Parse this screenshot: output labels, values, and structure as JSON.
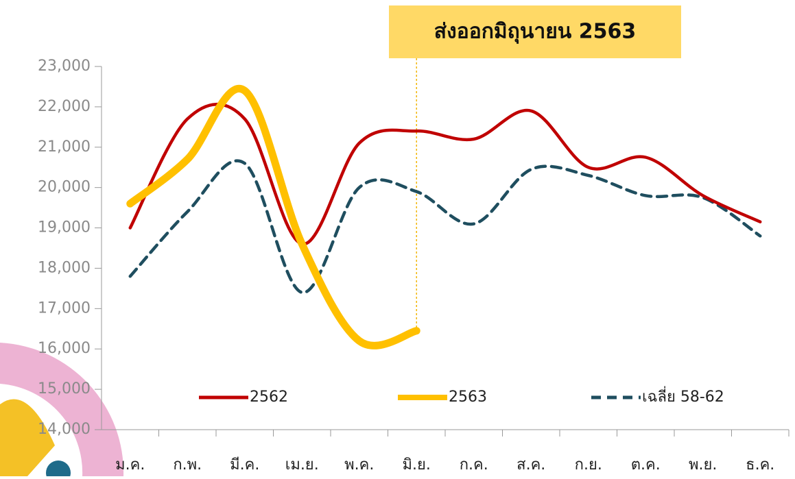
{
  "chart_data": {
    "type": "line",
    "annotation": "ส่งออกมิถุนายน 2563",
    "categories": [
      "ม.ค.",
      "ก.พ.",
      "มี.ค.",
      "เม.ย.",
      "พ.ค.",
      "มิ.ย.",
      "ก.ค.",
      "ส.ค.",
      "ก.ย.",
      "ต.ค.",
      "พ.ย.",
      "ธ.ค."
    ],
    "series": [
      {
        "name": "2562",
        "color": "#c00000",
        "dash": false,
        "values": [
          19000,
          21700,
          21700,
          18600,
          21100,
          21400,
          21200,
          21900,
          20500,
          20750,
          19800,
          19150
        ]
      },
      {
        "name": "2563",
        "color": "#ffc000",
        "dash": false,
        "values": [
          19600,
          20700,
          22400,
          18600,
          16200,
          16450,
          null,
          null,
          null,
          null,
          null,
          null
        ]
      },
      {
        "name": "เฉลี่ย 58-62",
        "color": "#1f4e5f",
        "dash": true,
        "values": [
          17800,
          19400,
          20600,
          17400,
          20000,
          19900,
          19100,
          20450,
          20300,
          19800,
          19750,
          18800
        ]
      }
    ],
    "ylim": [
      14000,
      23000
    ],
    "yticks": [
      {
        "value": 14000,
        "label": "14,000"
      },
      {
        "value": 15000,
        "label": "15,000"
      },
      {
        "value": 16000,
        "label": "16,000"
      },
      {
        "value": 17000,
        "label": "17,000"
      },
      {
        "value": 18000,
        "label": "18,000"
      },
      {
        "value": 19000,
        "label": "19,000"
      },
      {
        "value": 20000,
        "label": "20,000"
      },
      {
        "value": 21000,
        "label": "21,000"
      },
      {
        "value": 22000,
        "label": "22,000"
      },
      {
        "value": 23000,
        "label": "23,000"
      }
    ]
  }
}
